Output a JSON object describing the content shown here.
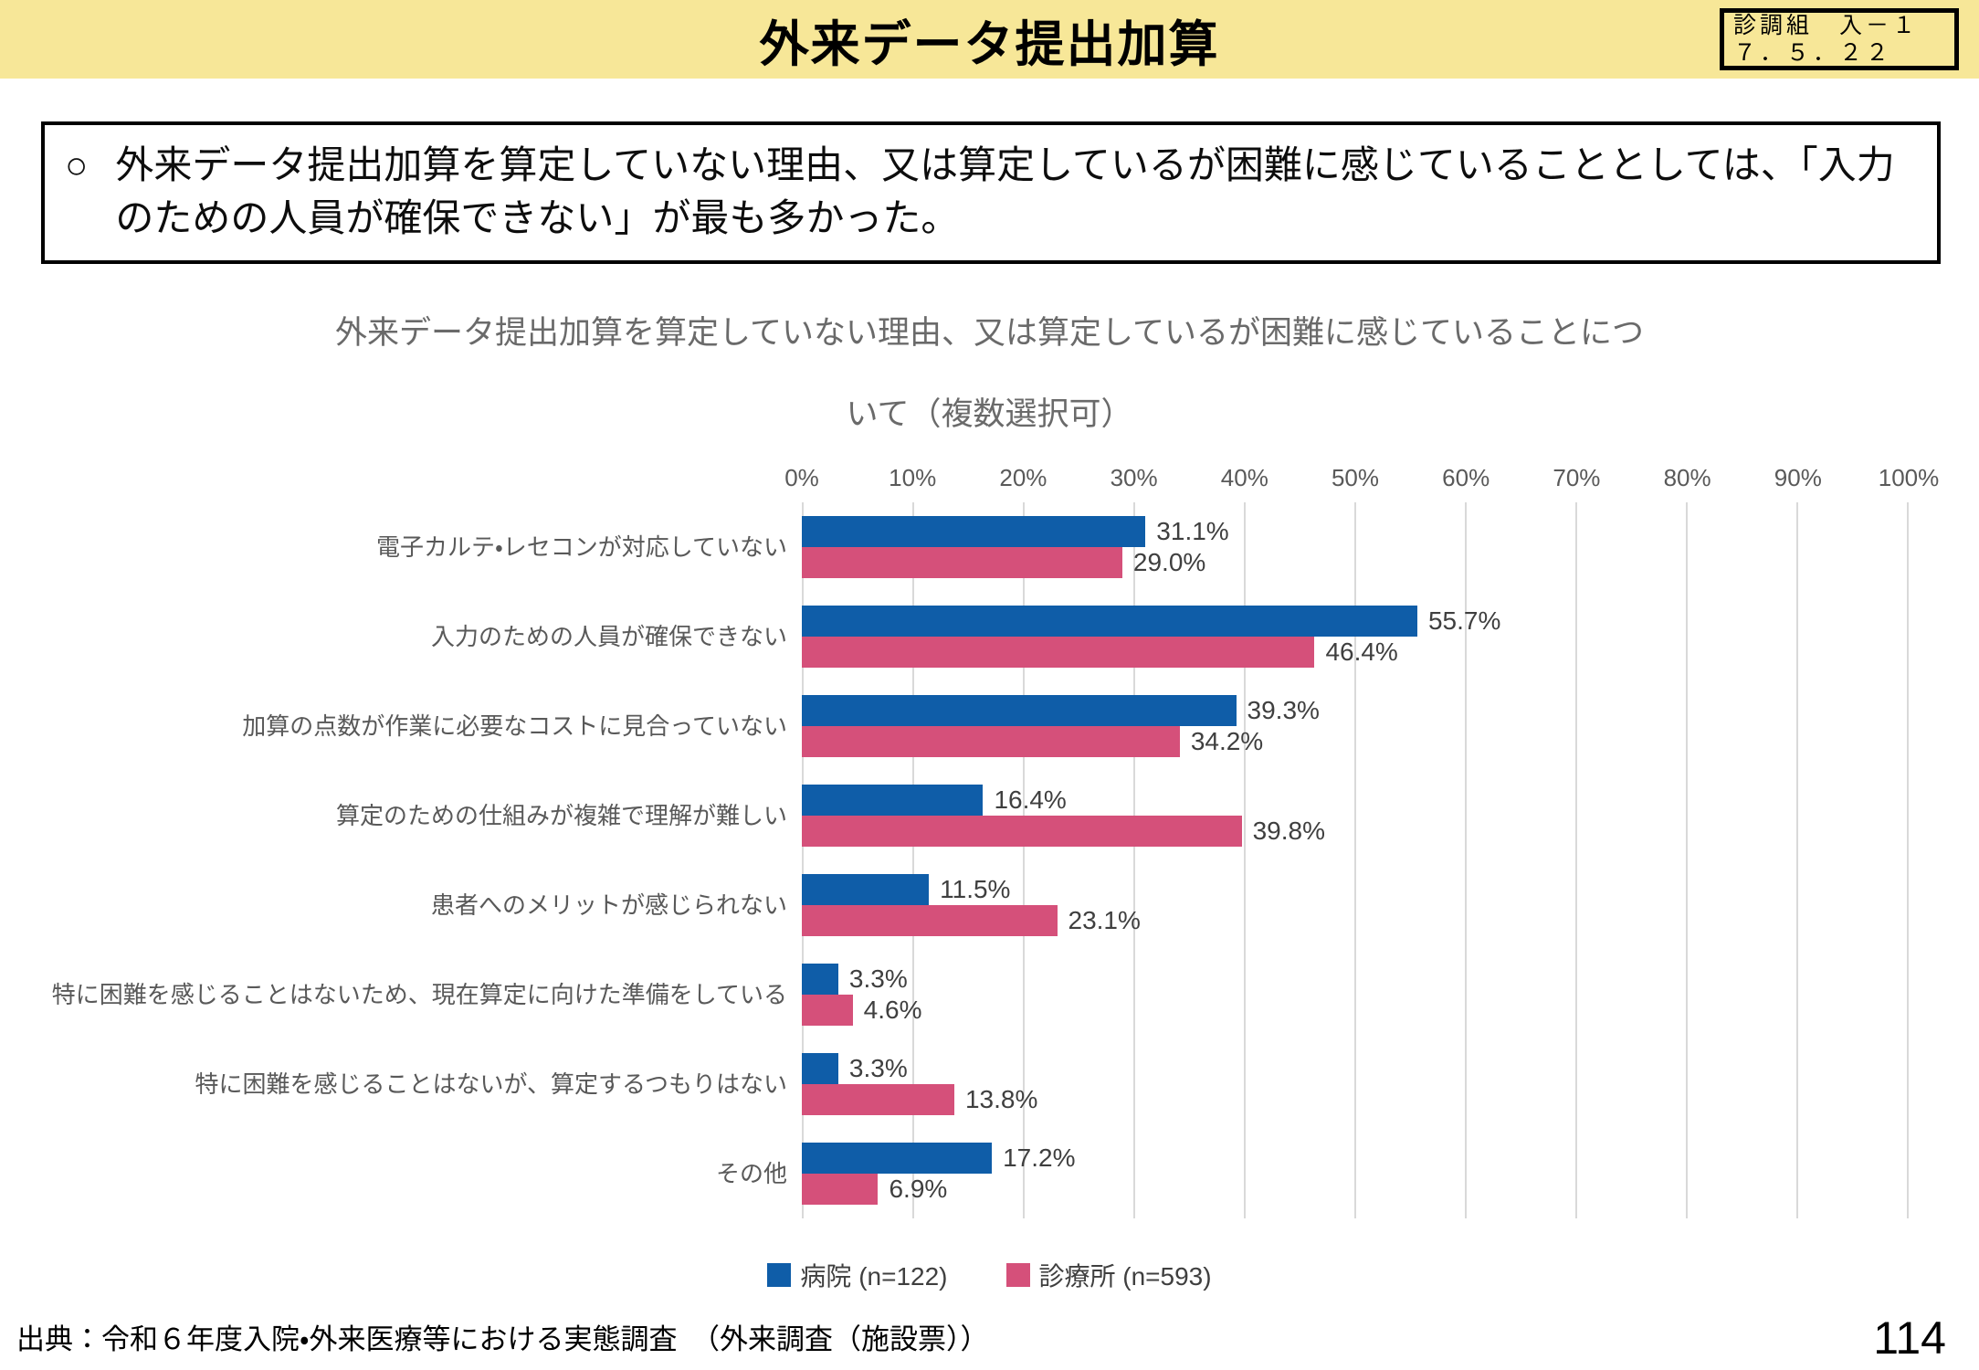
{
  "header": {
    "title": "外来データ提出加算",
    "doc_ref_line1": "診調組　入－１",
    "doc_ref_line2": "７．５．２２"
  },
  "summary": {
    "marker": "○",
    "text": "外来データ提出加算を算定していない理由、又は算定しているが困難に感じていることとしては、「入力のための人員が確保できない」が最も多かった。"
  },
  "chart_data": {
    "type": "bar",
    "orientation": "horizontal",
    "title_line1": "外来データ提出加算を算定していない理由、又は算定しているが困難に感じていることにつ",
    "title_line2": "いて（複数選択可）",
    "x_ticks": [
      "0%",
      "10%",
      "20%",
      "30%",
      "40%",
      "50%",
      "60%",
      "70%",
      "80%",
      "90%",
      "100%"
    ],
    "xlim": [
      0,
      100
    ],
    "grid": true,
    "legend_position": "bottom",
    "categories": [
      "電子カルテ・レセコンが対応していない",
      "入力のための人員が確保できない",
      "加算の点数が作業に必要なコストに見合っていない",
      "算定のための仕組みが複雑で理解が難しい",
      "患者へのメリットが感じられない",
      "特に困難を感じることはないため、現在算定に向けた準備をしている",
      "特に困難を感じることはないが、算定するつもりはない",
      "その他"
    ],
    "series": [
      {
        "name": "病院 (n=122)",
        "color": "#0F5DA8",
        "values": [
          31.1,
          55.7,
          39.3,
          16.4,
          11.5,
          3.3,
          3.3,
          17.2
        ]
      },
      {
        "name": "診療所 (n=593)",
        "color": "#D5507A",
        "values": [
          29.0,
          46.4,
          34.2,
          39.8,
          23.1,
          4.6,
          13.8,
          6.9
        ]
      }
    ],
    "colors": {
      "gridline": "#D9D9D9",
      "tick_label": "#595959",
      "title_gray": "#6A6A6A",
      "header_yellow": "#F7E798"
    }
  },
  "footer": {
    "source": "出典：令和６年度入院・外来医療等における実態調査　（外来調査（施設票））",
    "page_number": "114"
  }
}
